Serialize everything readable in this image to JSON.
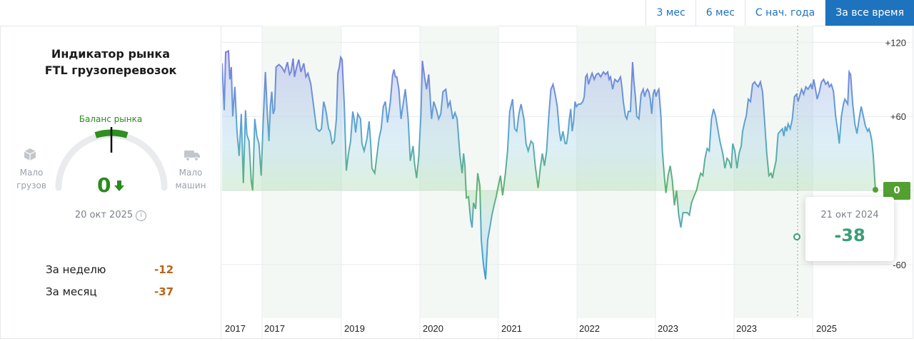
{
  "tabs": [
    {
      "label": "3 мес",
      "active": false
    },
    {
      "label": "6 мес",
      "active": false
    },
    {
      "label": "С нач. года",
      "active": false
    },
    {
      "label": "За все время",
      "active": true
    }
  ],
  "panel": {
    "title_line1": "Индикатор рынка",
    "title_line2": "FTL грузоперевозок",
    "balance_label": "Баланс рынка",
    "left_label_line1": "Мало",
    "left_label_line2": "грузов",
    "right_label_line1": "Мало",
    "right_label_line2": "машин",
    "value": "0",
    "date": "20 окт 2025",
    "stats": [
      {
        "label": "За неделю",
        "value": "-12"
      },
      {
        "label": "За месяц",
        "value": "-37"
      }
    ]
  },
  "colors": {
    "accent": "#1e73be",
    "positive": "#2c8a1e",
    "negative": "#b8641b",
    "tooltip_value": "#3a9e76"
  },
  "tooltip": {
    "date": "21 окт 2024",
    "value": "-38"
  },
  "badge": {
    "value": "0"
  },
  "chart_data": {
    "type": "area",
    "y_ticks": [
      "+120",
      "+60",
      "0",
      "-60"
    ],
    "ylim": [
      -120,
      125
    ],
    "x_tick_labels": [
      "2017",
      "2017",
      "2019",
      "2020",
      "2021",
      "2022",
      "2023",
      "2023",
      "2025"
    ],
    "grid": true,
    "xlim": [
      2016.75,
      2025.95
    ],
    "points": [
      [
        2016.75,
        103
      ],
      [
        2016.78,
        65
      ],
      [
        2016.8,
        112
      ],
      [
        2016.84,
        113
      ],
      [
        2016.86,
        90
      ],
      [
        2016.88,
        100
      ],
      [
        2016.9,
        60
      ],
      [
        2016.93,
        84
      ],
      [
        2016.96,
        48
      ],
      [
        2016.99,
        28
      ],
      [
        2017.02,
        62
      ],
      [
        2017.05,
        6
      ],
      [
        2017.08,
        65
      ],
      [
        2017.1,
        45
      ],
      [
        2017.13,
        40
      ],
      [
        2017.16,
        8
      ],
      [
        2017.18,
        0
      ],
      [
        2017.21,
        58
      ],
      [
        2017.24,
        44
      ],
      [
        2017.27,
        38
      ],
      [
        2017.3,
        12
      ],
      [
        2017.33,
        58
      ],
      [
        2017.36,
        96
      ],
      [
        2017.38,
        70
      ],
      [
        2017.41,
        40
      ],
      [
        2017.43,
        68
      ],
      [
        2017.45,
        80
      ],
      [
        2017.47,
        62
      ],
      [
        2017.49,
        66
      ],
      [
        2017.51,
        100
      ],
      [
        2017.55,
        102
      ],
      [
        2017.59,
        100
      ],
      [
        2017.63,
        96
      ],
      [
        2017.67,
        104
      ],
      [
        2017.7,
        94
      ],
      [
        2017.72,
        96
      ],
      [
        2017.75,
        107
      ],
      [
        2017.77,
        92
      ],
      [
        2017.8,
        100
      ],
      [
        2017.83,
        106
      ],
      [
        2017.86,
        96
      ],
      [
        2017.9,
        103
      ],
      [
        2017.93,
        92
      ],
      [
        2017.96,
        95
      ],
      [
        2018.0,
        86
      ],
      [
        2018.04,
        68
      ],
      [
        2018.08,
        50
      ],
      [
        2018.12,
        48
      ],
      [
        2018.15,
        50
      ],
      [
        2018.18,
        72
      ],
      [
        2018.2,
        68
      ],
      [
        2018.22,
        62
      ],
      [
        2018.25,
        50
      ],
      [
        2018.27,
        48
      ],
      [
        2018.3,
        38
      ],
      [
        2018.33,
        40
      ],
      [
        2018.36,
        58
      ],
      [
        2018.38,
        95
      ],
      [
        2018.4,
        100
      ],
      [
        2018.42,
        108
      ],
      [
        2018.44,
        106
      ],
      [
        2018.47,
        70
      ],
      [
        2018.5,
        16
      ],
      [
        2018.53,
        30
      ],
      [
        2018.56,
        40
      ],
      [
        2018.59,
        64
      ],
      [
        2018.61,
        58
      ],
      [
        2018.63,
        47
      ],
      [
        2018.66,
        62
      ],
      [
        2018.7,
        58
      ],
      [
        2018.72,
        38
      ],
      [
        2018.75,
        32
      ],
      [
        2018.79,
        42
      ],
      [
        2018.82,
        56
      ],
      [
        2018.84,
        40
      ],
      [
        2018.86,
        18
      ],
      [
        2018.9,
        14
      ],
      [
        2018.93,
        28
      ],
      [
        2018.96,
        42
      ],
      [
        2018.99,
        50
      ],
      [
        2019.02,
        68
      ],
      [
        2019.05,
        72
      ],
      [
        2019.08,
        55
      ],
      [
        2019.12,
        72
      ],
      [
        2019.15,
        93
      ],
      [
        2019.17,
        98
      ],
      [
        2019.19,
        92
      ],
      [
        2019.21,
        92
      ],
      [
        2019.24,
        82
      ],
      [
        2019.27,
        58
      ],
      [
        2019.3,
        70
      ],
      [
        2019.33,
        82
      ],
      [
        2019.37,
        58
      ],
      [
        2019.4,
        24
      ],
      [
        2019.44,
        36
      ],
      [
        2019.46,
        22
      ],
      [
        2019.49,
        10
      ],
      [
        2019.52,
        28
      ],
      [
        2019.55,
        62
      ],
      [
        2019.57,
        105
      ],
      [
        2019.6,
        92
      ],
      [
        2019.63,
        82
      ],
      [
        2019.66,
        94
      ],
      [
        2019.7,
        58
      ],
      [
        2019.73,
        72
      ],
      [
        2019.77,
        65
      ],
      [
        2019.8,
        58
      ],
      [
        2019.83,
        62
      ],
      [
        2019.86,
        80
      ],
      [
        2019.9,
        82
      ],
      [
        2019.93,
        68
      ],
      [
        2019.96,
        72
      ],
      [
        2020.0,
        58
      ],
      [
        2020.03,
        63
      ],
      [
        2020.06,
        58
      ],
      [
        2020.1,
        28
      ],
      [
        2020.13,
        14
      ],
      [
        2020.15,
        30
      ],
      [
        2020.17,
        20
      ],
      [
        2020.19,
        -6
      ],
      [
        2020.22,
        -5
      ],
      [
        2020.25,
        -24
      ],
      [
        2020.27,
        -30
      ],
      [
        2020.29,
        -10
      ],
      [
        2020.32,
        -15
      ],
      [
        2020.35,
        14
      ],
      [
        2020.38,
        4
      ],
      [
        2020.4,
        -40
      ],
      [
        2020.43,
        -60
      ],
      [
        2020.46,
        -72
      ],
      [
        2020.49,
        -40
      ],
      [
        2020.52,
        -30
      ],
      [
        2020.55,
        -20
      ],
      [
        2020.58,
        -12
      ],
      [
        2020.61,
        -5
      ],
      [
        2020.64,
        4
      ],
      [
        2020.67,
        12
      ],
      [
        2020.7,
        -4
      ],
      [
        2020.74,
        14
      ],
      [
        2020.77,
        32
      ],
      [
        2020.8,
        64
      ],
      [
        2020.84,
        74
      ],
      [
        2020.87,
        50
      ],
      [
        2020.9,
        48
      ],
      [
        2020.93,
        62
      ],
      [
        2020.96,
        70
      ],
      [
        2021.0,
        58
      ],
      [
        2021.03,
        38
      ],
      [
        2021.06,
        32
      ],
      [
        2021.1,
        40
      ],
      [
        2021.13,
        38
      ],
      [
        2021.16,
        20
      ],
      [
        2021.2,
        2
      ],
      [
        2021.23,
        18
      ],
      [
        2021.26,
        30
      ],
      [
        2021.29,
        20
      ],
      [
        2021.32,
        32
      ],
      [
        2021.35,
        60
      ],
      [
        2021.38,
        82
      ],
      [
        2021.41,
        86
      ],
      [
        2021.44,
        78
      ],
      [
        2021.47,
        68
      ],
      [
        2021.5,
        48
      ],
      [
        2021.52,
        40
      ],
      [
        2021.55,
        48
      ],
      [
        2021.58,
        38
      ],
      [
        2021.6,
        38
      ],
      [
        2021.62,
        46
      ],
      [
        2021.64,
        58
      ],
      [
        2021.66,
        66
      ],
      [
        2021.68,
        48
      ],
      [
        2021.7,
        56
      ],
      [
        2021.72,
        72
      ],
      [
        2021.74,
        68
      ],
      [
        2021.77,
        70
      ],
      [
        2021.8,
        70
      ],
      [
        2021.83,
        72
      ],
      [
        2021.85,
        76
      ],
      [
        2021.87,
        92
      ],
      [
        2021.89,
        94
      ],
      [
        2021.91,
        86
      ],
      [
        2021.93,
        90
      ],
      [
        2021.96,
        95
      ],
      [
        2021.99,
        90
      ],
      [
        2022.02,
        94
      ],
      [
        2022.05,
        95
      ],
      [
        2022.08,
        92
      ],
      [
        2022.12,
        96
      ],
      [
        2022.15,
        94
      ],
      [
        2022.18,
        96
      ],
      [
        2022.2,
        90
      ],
      [
        2022.22,
        92
      ],
      [
        2022.25,
        82
      ],
      [
        2022.28,
        90
      ],
      [
        2022.32,
        88
      ],
      [
        2022.36,
        92
      ],
      [
        2022.38,
        84
      ],
      [
        2022.4,
        72
      ],
      [
        2022.43,
        60
      ],
      [
        2022.45,
        58
      ],
      [
        2022.47,
        64
      ],
      [
        2022.5,
        64
      ],
      [
        2022.53,
        104
      ],
      [
        2022.55,
        88
      ],
      [
        2022.57,
        76
      ],
      [
        2022.59,
        60
      ],
      [
        2022.62,
        58
      ],
      [
        2022.65,
        78
      ],
      [
        2022.68,
        82
      ],
      [
        2022.7,
        76
      ],
      [
        2022.72,
        80
      ],
      [
        2022.74,
        82
      ],
      [
        2022.76,
        80
      ],
      [
        2022.78,
        74
      ],
      [
        2022.8,
        62
      ],
      [
        2022.82,
        78
      ],
      [
        2022.84,
        82
      ],
      [
        2022.86,
        76
      ],
      [
        2022.88,
        80
      ],
      [
        2022.9,
        82
      ],
      [
        2022.93,
        60
      ],
      [
        2022.95,
        32
      ],
      [
        2022.98,
        10
      ],
      [
        2023.0,
        -2
      ],
      [
        2023.03,
        12
      ],
      [
        2023.06,
        20
      ],
      [
        2023.09,
        8
      ],
      [
        2023.12,
        -12
      ],
      [
        2023.15,
        0
      ],
      [
        2023.18,
        -20
      ],
      [
        2023.21,
        -30
      ],
      [
        2023.24,
        -18
      ],
      [
        2023.27,
        -18
      ],
      [
        2023.3,
        -18
      ],
      [
        2023.33,
        -20
      ],
      [
        2023.36,
        -10
      ],
      [
        2023.4,
        -4
      ],
      [
        2023.43,
        0
      ],
      [
        2023.46,
        8
      ],
      [
        2023.49,
        14
      ],
      [
        2023.52,
        12
      ],
      [
        2023.55,
        26
      ],
      [
        2023.58,
        34
      ],
      [
        2023.61,
        32
      ],
      [
        2023.64,
        58
      ],
      [
        2023.67,
        66
      ],
      [
        2023.7,
        60
      ],
      [
        2023.73,
        50
      ],
      [
        2023.76,
        40
      ],
      [
        2023.8,
        30
      ],
      [
        2023.83,
        18
      ],
      [
        2023.86,
        26
      ],
      [
        2023.89,
        24
      ],
      [
        2023.92,
        18
      ],
      [
        2023.94,
        38
      ],
      [
        2023.97,
        32
      ],
      [
        2024.0,
        18
      ],
      [
        2024.03,
        30
      ],
      [
        2024.06,
        36
      ],
      [
        2024.08,
        48
      ],
      [
        2024.11,
        56
      ],
      [
        2024.13,
        60
      ],
      [
        2024.16,
        74
      ],
      [
        2024.19,
        72
      ],
      [
        2024.22,
        86
      ],
      [
        2024.25,
        88
      ],
      [
        2024.27,
        86
      ],
      [
        2024.3,
        84
      ],
      [
        2024.33,
        88
      ],
      [
        2024.36,
        80
      ],
      [
        2024.39,
        56
      ],
      [
        2024.42,
        30
      ],
      [
        2024.45,
        12
      ],
      [
        2024.48,
        14
      ],
      [
        2024.5,
        10
      ],
      [
        2024.52,
        16
      ],
      [
        2024.55,
        24
      ],
      [
        2024.58,
        46
      ],
      [
        2024.61,
        48
      ],
      [
        2024.64,
        50
      ],
      [
        2024.66,
        44
      ],
      [
        2024.68,
        52
      ],
      [
        2024.7,
        48
      ],
      [
        2024.72,
        54
      ],
      [
        2024.75,
        50
      ],
      [
        2024.78,
        58
      ],
      [
        2024.81,
        76
      ],
      [
        2024.84,
        78
      ],
      [
        2024.86,
        72
      ],
      [
        2024.88,
        76
      ],
      [
        2024.91,
        82
      ],
      [
        2024.94,
        78
      ],
      [
        2024.97,
        84
      ],
      [
        2025.0,
        82
      ],
      [
        2025.02,
        84
      ],
      [
        2025.04,
        86
      ],
      [
        2025.06,
        82
      ],
      [
        2025.08,
        90
      ],
      [
        2025.1,
        84
      ],
      [
        2025.13,
        74
      ],
      [
        2025.16,
        80
      ],
      [
        2025.19,
        88
      ],
      [
        2025.22,
        90
      ],
      [
        2025.25,
        86
      ],
      [
        2025.28,
        88
      ],
      [
        2025.3,
        84
      ],
      [
        2025.33,
        86
      ],
      [
        2025.36,
        80
      ],
      [
        2025.39,
        60
      ],
      [
        2025.42,
        48
      ],
      [
        2025.44,
        38
      ],
      [
        2025.47,
        60
      ],
      [
        2025.5,
        70
      ],
      [
        2025.52,
        74
      ],
      [
        2025.54,
        72
      ],
      [
        2025.56,
        70
      ],
      [
        2025.58,
        96
      ],
      [
        2025.6,
        94
      ],
      [
        2025.63,
        70
      ],
      [
        2025.66,
        54
      ],
      [
        2025.69,
        46
      ],
      [
        2025.72,
        58
      ],
      [
        2025.75,
        68
      ],
      [
        2025.78,
        60
      ],
      [
        2025.81,
        52
      ],
      [
        2025.84,
        48
      ],
      [
        2025.86,
        50
      ],
      [
        2025.88,
        46
      ],
      [
        2025.9,
        40
      ],
      [
        2025.92,
        28
      ],
      [
        2025.95,
        0
      ]
    ],
    "note_series": ""
  }
}
